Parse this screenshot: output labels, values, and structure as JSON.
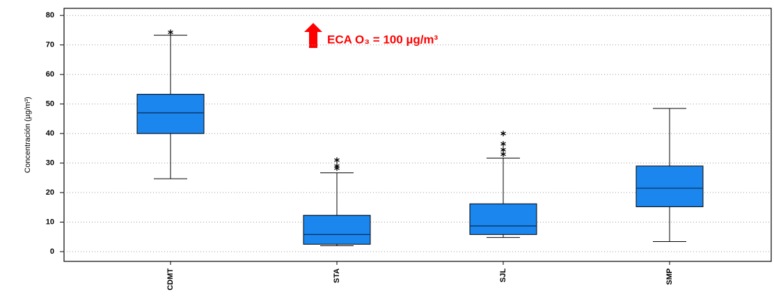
{
  "chart_data": {
    "type": "box",
    "y_label": "Concentración (µg/m³)",
    "annotation": "ECA O₃ = 100 µg/m³",
    "categories": [
      "CDMT",
      "STA",
      "SJL",
      "SMP"
    ],
    "color": "#1a86ee",
    "boxes": [
      {
        "whisker_low": 24.7,
        "q1": 40,
        "median": 47,
        "q3": 53.3,
        "whisker_high": 73.3,
        "outliers": [
          74.3
        ]
      },
      {
        "whisker_low": 2,
        "q1": 2.5,
        "median": 5.8,
        "q3": 12.3,
        "whisker_high": 26.7,
        "outliers": [
          28.3,
          29,
          31
        ]
      },
      {
        "whisker_low": 4.8,
        "q1": 5.8,
        "median": 8.7,
        "q3": 16.2,
        "whisker_high": 31.7,
        "outliers": [
          33,
          34.5,
          36.5,
          40
        ]
      },
      {
        "whisker_low": 3.4,
        "q1": 15.2,
        "median": 21.5,
        "q3": 29,
        "whisker_high": 48.5,
        "outliers": []
      }
    ],
    "ylim": [
      -3.3,
      82.4
    ],
    "yticks": [
      0,
      10,
      20,
      30,
      40,
      50,
      60,
      70,
      80
    ],
    "grid": true
  }
}
